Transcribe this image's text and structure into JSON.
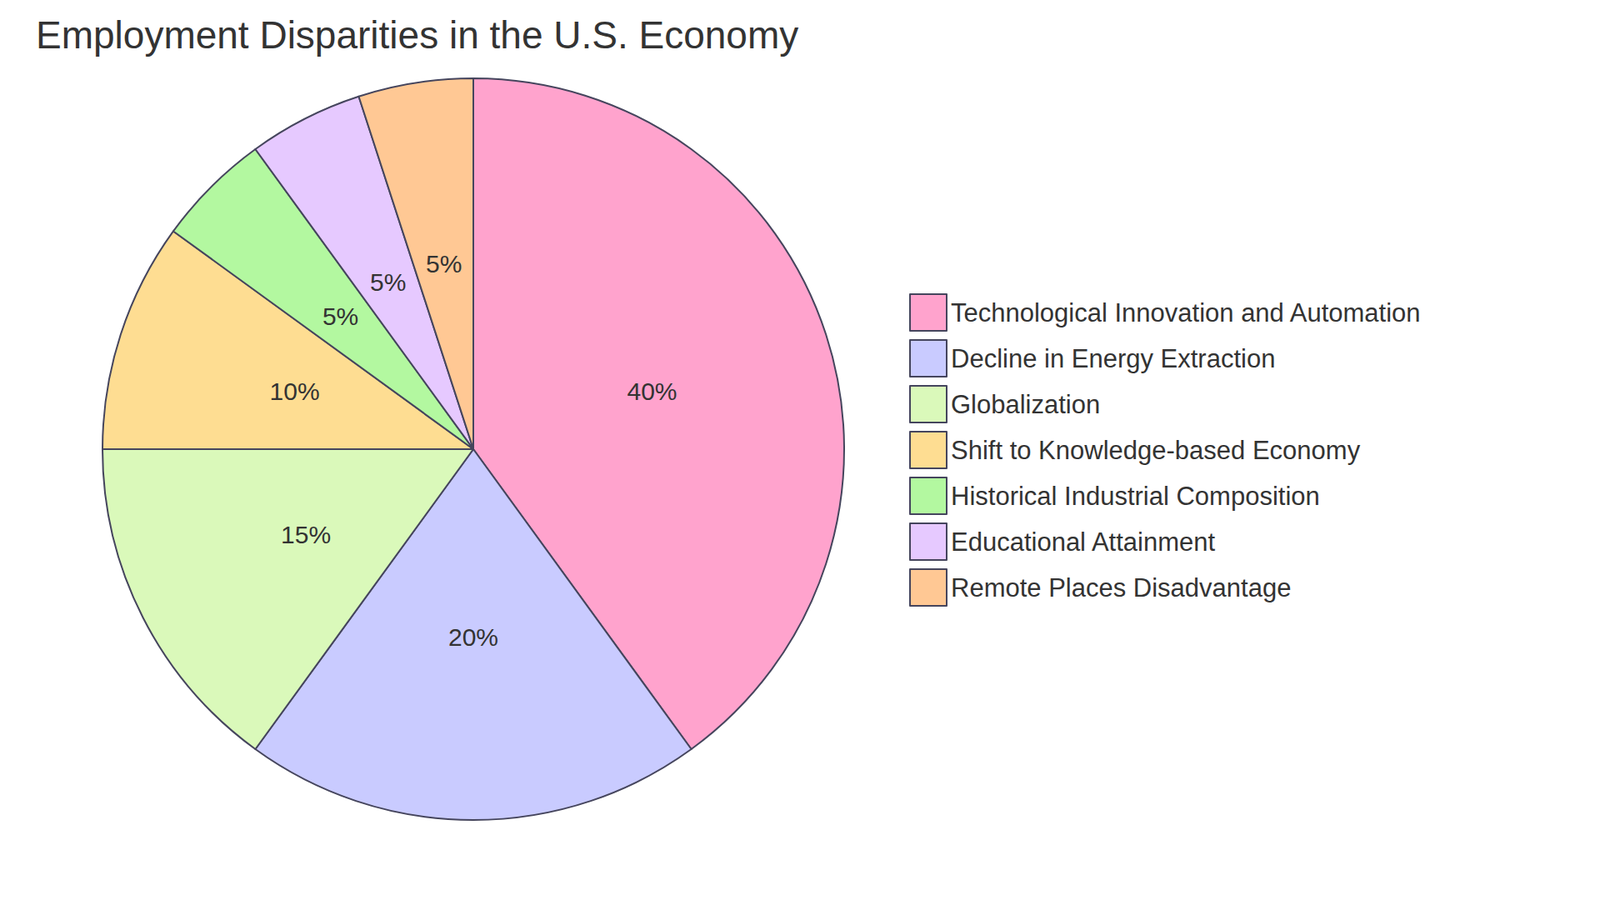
{
  "chart_data": {
    "type": "pie",
    "title": "Employment Disparities in the U.S. Economy",
    "categories": [
      "Technological Innovation and Automation",
      "Decline in Energy Extraction",
      "Globalization",
      "Shift to Knowledge-based Economy",
      "Historical Industrial Composition",
      "Educational Attainment",
      "Remote Places Disadvantage"
    ],
    "values": [
      40,
      20,
      15,
      10,
      5,
      5,
      5
    ],
    "value_labels": [
      "40%",
      "20%",
      "15%",
      "10%",
      "5%",
      "5%",
      "5%"
    ],
    "colors": [
      "#ffa3cd",
      "#c9cbff",
      "#daf9ba",
      "#fedd92",
      "#b3f8a0",
      "#e6c9ff",
      "#ffc894"
    ],
    "data_labels": true,
    "legend": "right"
  }
}
